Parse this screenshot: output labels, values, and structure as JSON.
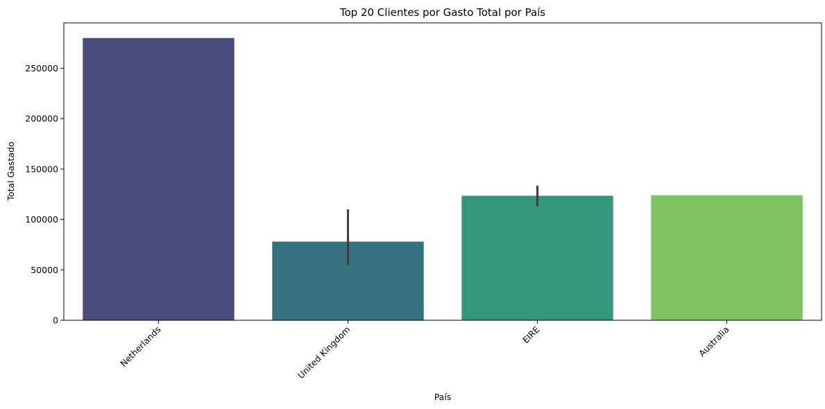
{
  "chart_data": {
    "type": "bar",
    "title": "Top 20 Clientes por Gasto Total por País",
    "xlabel": "País",
    "ylabel": "Total Gastado",
    "categories": [
      "Netherlands",
      "United Kingdom",
      "EIRE",
      "Australia"
    ],
    "values": [
      280000,
      78000,
      123500,
      124000
    ],
    "error_bars": [
      null,
      [
        55000,
        110000
      ],
      [
        113000,
        133500
      ],
      null
    ],
    "colors": [
      "#4a4c7e",
      "#37717f",
      "#34967a",
      "#7fc262"
    ],
    "ylim": [
      0,
      295000
    ],
    "yticks": [
      0,
      50000,
      100000,
      150000,
      200000,
      250000
    ],
    "ytick_labels": [
      "0",
      "50000",
      "100000",
      "150000",
      "200000",
      "250000"
    ],
    "grid": false,
    "legend": "none"
  }
}
